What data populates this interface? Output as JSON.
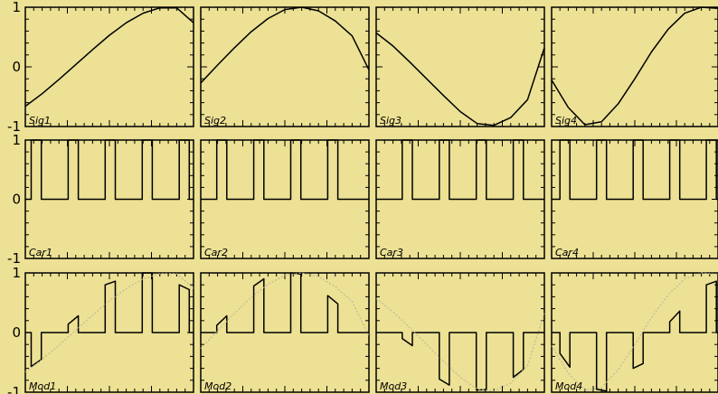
{
  "figure": {
    "background": "#ECE194",
    "axis_color": "#000000",
    "line_color": "#000000",
    "overlay_color": "#B7B39A"
  },
  "chart_data": [
    {
      "type": "line",
      "row": 0,
      "col": 0,
      "name": "Sig1",
      "xlim": [
        0,
        1
      ],
      "ylim": [
        -1,
        1
      ],
      "yticks": [
        -1,
        0,
        1
      ],
      "ytick_labels": [
        "-1",
        "0",
        "1"
      ],
      "series": [
        {
          "x": [
            0.0,
            0.1,
            0.2,
            0.3,
            0.4,
            0.5,
            0.6,
            0.7,
            0.8,
            0.9,
            1.0
          ],
          "y": [
            -0.66,
            -0.45,
            -0.21,
            0.04,
            0.29,
            0.53,
            0.74,
            0.9,
            0.99,
            0.99,
            0.74
          ]
        }
      ]
    },
    {
      "type": "line",
      "row": 0,
      "col": 1,
      "name": "Sig2",
      "xlim": [
        0,
        1
      ],
      "ylim": [
        -1,
        1
      ],
      "series": [
        {
          "x": [
            0.0,
            0.1,
            0.2,
            0.3,
            0.4,
            0.5,
            0.6,
            0.7,
            0.8,
            0.9,
            1.0
          ],
          "y": [
            -0.27,
            0.03,
            0.32,
            0.59,
            0.81,
            0.96,
            1.0,
            0.94,
            0.77,
            0.52,
            -0.05
          ]
        }
      ]
    },
    {
      "type": "line",
      "row": 0,
      "col": 2,
      "name": "Sig3",
      "xlim": [
        0,
        1
      ],
      "ylim": [
        -1,
        1
      ],
      "series": [
        {
          "x": [
            0.0,
            0.1,
            0.2,
            0.3,
            0.4,
            0.5,
            0.6,
            0.7,
            0.8,
            0.9,
            1.0
          ],
          "y": [
            0.57,
            0.35,
            0.08,
            -0.2,
            -0.48,
            -0.75,
            -0.95,
            -0.98,
            -0.85,
            -0.55,
            0.32
          ]
        }
      ]
    },
    {
      "type": "line",
      "row": 0,
      "col": 3,
      "name": "Sig4",
      "xlim": [
        0,
        1
      ],
      "ylim": [
        -1,
        1
      ],
      "series": [
        {
          "x": [
            0.0,
            0.1,
            0.2,
            0.3,
            0.4,
            0.5,
            0.6,
            0.7,
            0.8,
            0.9,
            1.0
          ],
          "y": [
            -0.22,
            -0.68,
            -0.97,
            -0.92,
            -0.62,
            -0.2,
            0.25,
            0.63,
            0.9,
            1.0,
            0.98
          ]
        }
      ]
    },
    {
      "type": "line",
      "row": 1,
      "col": 0,
      "name": "Car1",
      "xlim": [
        0,
        1
      ],
      "ylim": [
        -1,
        1
      ],
      "yticks": [
        -1,
        0,
        1
      ],
      "ytick_labels": [
        "-1",
        "0",
        "1"
      ],
      "series": [
        {
          "x": [
            0.0,
            0.035,
            0.035,
            0.095,
            0.095,
            0.255,
            0.255,
            0.315,
            0.315,
            0.475,
            0.475,
            0.535,
            0.535,
            0.695,
            0.695,
            0.755,
            0.755,
            0.915,
            0.915,
            0.975,
            0.975,
            1.0
          ],
          "y": [
            0,
            0,
            1,
            1,
            0,
            0,
            1,
            1,
            0,
            0,
            1,
            1,
            0,
            0,
            1,
            1,
            0,
            0,
            1,
            1,
            0,
            0
          ]
        }
      ]
    },
    {
      "type": "line",
      "row": 1,
      "col": 1,
      "name": "Car2",
      "xlim": [
        0,
        1
      ],
      "ylim": [
        -1,
        1
      ],
      "series": [
        {
          "x": [
            0.0,
            0.095,
            0.095,
            0.155,
            0.155,
            0.315,
            0.315,
            0.375,
            0.375,
            0.535,
            0.535,
            0.595,
            0.595,
            0.755,
            0.755,
            0.815,
            0.815,
            1.0
          ],
          "y": [
            0,
            0,
            1,
            1,
            0,
            0,
            1,
            1,
            0,
            0,
            1,
            1,
            0,
            0,
            1,
            1,
            0,
            0
          ]
        }
      ]
    },
    {
      "type": "line",
      "row": 1,
      "col": 2,
      "name": "Car3",
      "xlim": [
        0,
        1
      ],
      "ylim": [
        -1,
        1
      ],
      "series": [
        {
          "x": [
            0.0,
            0.155,
            0.155,
            0.215,
            0.215,
            0.375,
            0.375,
            0.435,
            0.435,
            0.595,
            0.595,
            0.655,
            0.655,
            0.815,
            0.815,
            0.875,
            0.875,
            1.0
          ],
          "y": [
            0,
            0,
            1,
            1,
            0,
            0,
            1,
            1,
            0,
            0,
            1,
            1,
            0,
            0,
            1,
            1,
            0,
            0
          ]
        }
      ]
    },
    {
      "type": "line",
      "row": 1,
      "col": 3,
      "name": "Car4",
      "xlim": [
        0,
        1
      ],
      "ylim": [
        -1,
        1
      ],
      "series": [
        {
          "x": [
            0.0,
            0.05,
            0.05,
            0.11,
            0.11,
            0.27,
            0.27,
            0.33,
            0.33,
            0.49,
            0.49,
            0.55,
            0.55,
            0.71,
            0.71,
            0.77,
            0.77,
            0.93,
            0.93,
            0.99,
            0.99,
            1.0
          ],
          "y": [
            0,
            0,
            1,
            1,
            0,
            0,
            1,
            1,
            0,
            0,
            1,
            1,
            0,
            0,
            1,
            1,
            0,
            0,
            1,
            1,
            0,
            0
          ]
        }
      ]
    },
    {
      "type": "line",
      "row": 2,
      "col": 0,
      "name": "Mod1",
      "xlim": [
        0,
        1
      ],
      "ylim": [
        -1,
        1
      ],
      "yticks": [
        -1,
        0,
        1
      ],
      "ytick_labels": [
        "-1",
        "0",
        "1"
      ],
      "series": [
        {
          "x": [
            0.0,
            0.035,
            0.035,
            0.095,
            0.095,
            0.255,
            0.255,
            0.315,
            0.315,
            0.475,
            0.475,
            0.535,
            0.535,
            0.695,
            0.695,
            0.755,
            0.755,
            0.915,
            0.915,
            0.975,
            0.975,
            1.0
          ],
          "y": [
            0,
            0,
            -0.57,
            -0.45,
            0,
            0,
            0.14,
            0.28,
            0,
            0,
            0.8,
            0.86,
            0,
            0,
            1.0,
            1.0,
            0,
            0,
            0.8,
            0.72,
            0,
            0
          ]
        },
        {
          "style": "dotted",
          "x": [
            0.0,
            0.1,
            0.2,
            0.3,
            0.4,
            0.5,
            0.6,
            0.7,
            0.8,
            0.9,
            1.0
          ],
          "y": [
            -0.66,
            -0.45,
            -0.21,
            0.04,
            0.29,
            0.53,
            0.74,
            0.9,
            0.99,
            0.99,
            0.74
          ]
        }
      ]
    },
    {
      "type": "line",
      "row": 2,
      "col": 1,
      "name": "Mod2",
      "xlim": [
        0,
        1
      ],
      "ylim": [
        -1,
        1
      ],
      "series": [
        {
          "x": [
            0.0,
            0.095,
            0.095,
            0.155,
            0.155,
            0.315,
            0.315,
            0.375,
            0.375,
            0.535,
            0.535,
            0.595,
            0.595,
            0.755,
            0.755,
            0.815,
            0.815,
            1.0
          ],
          "y": [
            0,
            0,
            0.12,
            0.28,
            0,
            0,
            0.78,
            0.9,
            0,
            0,
            1.0,
            0.98,
            0,
            0,
            0.62,
            0.48,
            0,
            0
          ]
        },
        {
          "style": "dotted",
          "x": [
            0.0,
            0.1,
            0.2,
            0.3,
            0.4,
            0.5,
            0.6,
            0.7,
            0.8,
            0.9,
            1.0
          ],
          "y": [
            -0.27,
            0.03,
            0.32,
            0.59,
            0.81,
            0.96,
            1.0,
            0.94,
            0.77,
            0.52,
            -0.05
          ]
        }
      ]
    },
    {
      "type": "line",
      "row": 2,
      "col": 2,
      "name": "Mod3",
      "xlim": [
        0,
        1
      ],
      "ylim": [
        -1,
        1
      ],
      "series": [
        {
          "x": [
            0.0,
            0.155,
            0.155,
            0.215,
            0.215,
            0.375,
            0.375,
            0.435,
            0.435,
            0.595,
            0.595,
            0.655,
            0.655,
            0.815,
            0.815,
            0.875,
            0.875,
            1.0
          ],
          "y": [
            0,
            0,
            -0.1,
            -0.22,
            0,
            0,
            -0.78,
            -0.88,
            0,
            0,
            -0.96,
            -0.96,
            0,
            0,
            -0.75,
            -0.62,
            0,
            0
          ]
        },
        {
          "style": "dotted",
          "x": [
            0.0,
            0.1,
            0.2,
            0.3,
            0.4,
            0.5,
            0.6,
            0.7,
            0.8,
            0.9,
            1.0
          ],
          "y": [
            0.57,
            0.35,
            0.08,
            -0.2,
            -0.48,
            -0.75,
            -0.95,
            -0.98,
            -0.85,
            -0.55,
            0.32
          ]
        }
      ]
    },
    {
      "type": "line",
      "row": 2,
      "col": 3,
      "name": "Mod4",
      "xlim": [
        0,
        1
      ],
      "ylim": [
        -1,
        1
      ],
      "series": [
        {
          "x": [
            0.0,
            0.05,
            0.05,
            0.11,
            0.11,
            0.27,
            0.27,
            0.33,
            0.33,
            0.49,
            0.49,
            0.55,
            0.55,
            0.71,
            0.71,
            0.77,
            0.77,
            0.93,
            0.93,
            0.99,
            0.99,
            1.0
          ],
          "y": [
            0,
            0,
            -0.35,
            -0.58,
            0,
            0,
            -0.95,
            -0.98,
            0,
            0,
            -0.6,
            -0.52,
            0,
            0,
            0.18,
            0.36,
            0,
            0,
            0.8,
            0.86,
            0,
            0
          ]
        },
        {
          "style": "dotted",
          "x": [
            0.0,
            0.1,
            0.2,
            0.3,
            0.4,
            0.5,
            0.6,
            0.7,
            0.8,
            0.9,
            1.0
          ],
          "y": [
            -0.22,
            -0.68,
            -0.97,
            -0.92,
            -0.62,
            -0.2,
            0.25,
            0.63,
            0.9,
            1.0,
            0.98
          ]
        }
      ]
    }
  ]
}
